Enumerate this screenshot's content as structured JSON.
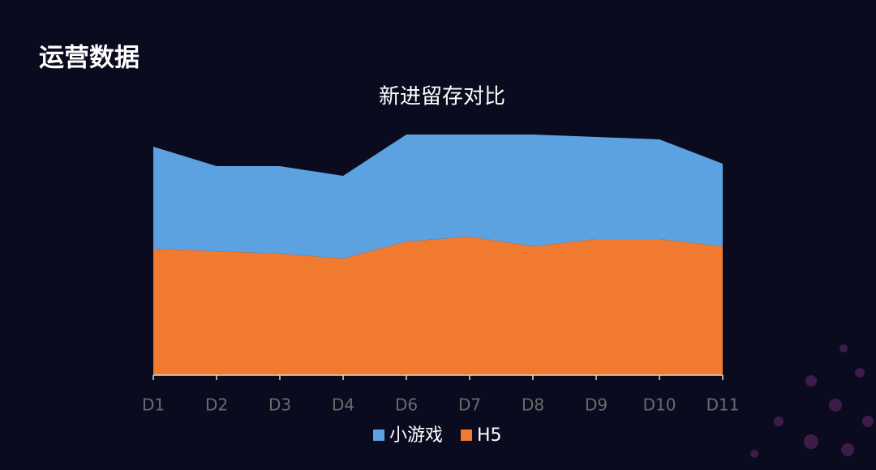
{
  "header": {
    "title": "运营数据"
  },
  "chart_data": {
    "type": "stacked-area",
    "title": "新进留存对比",
    "categories": [
      "D1",
      "D2",
      "D3",
      "D4",
      "D6",
      "D7",
      "D8",
      "D9",
      "D10",
      "D11"
    ],
    "series": [
      {
        "name": "小游戏",
        "color": "#5ca2e0",
        "values": [
          42,
          35,
          36,
          34,
          44,
          42,
          46,
          42,
          41,
          34
        ]
      },
      {
        "name": "H5",
        "color": "#f07a30",
        "values": [
          52,
          51,
          50,
          48,
          55,
          57,
          53,
          56,
          56,
          53
        ]
      }
    ],
    "ylim": [
      0,
      100
    ]
  }
}
